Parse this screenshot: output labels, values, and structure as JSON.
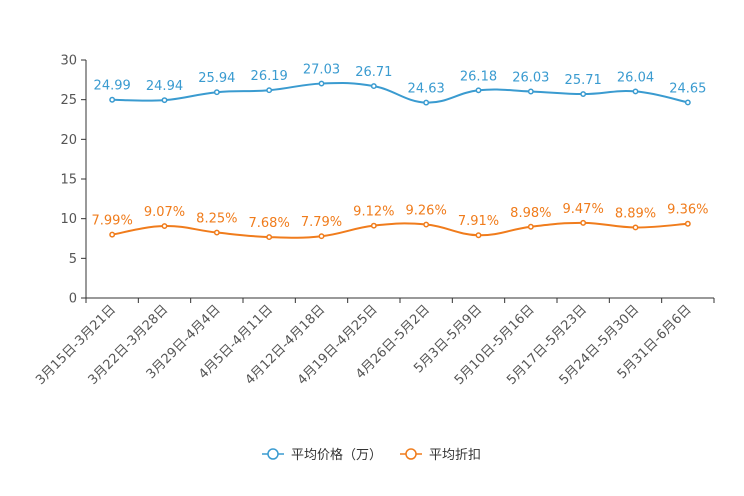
{
  "chart_data": {
    "type": "line",
    "title": "",
    "xlabel": "",
    "ylabel": "",
    "ylim": [
      0,
      30
    ],
    "yticks": [
      0,
      5,
      10,
      15,
      20,
      25,
      30
    ],
    "grid": false,
    "legend_position": "bottom-center",
    "categories": [
      "3月15日-3月21日",
      "3月22日-3月28日",
      "3月29日-4月4日",
      "4月5日-4月11日",
      "4月12日-4月18日",
      "4月19日-4月25日",
      "4月26日-5月2日",
      "5月3日-5月9日",
      "5月10日-5月16日",
      "5月17日-5月23日",
      "5月24日-5月30日",
      "5月31日-6月6日"
    ],
    "series": [
      {
        "name": "平均价格（万）",
        "color": "#3a9bd0",
        "values": [
          24.99,
          24.94,
          25.94,
          26.19,
          27.03,
          26.71,
          24.63,
          26.18,
          26.03,
          25.71,
          26.04,
          24.65
        ],
        "labels": [
          "24.99",
          "24.94",
          "25.94",
          "26.19",
          "27.03",
          "26.71",
          "24.63",
          "26.18",
          "26.03",
          "25.71",
          "26.04",
          "24.65"
        ]
      },
      {
        "name": "平均折扣",
        "color": "#f07c1c",
        "values": [
          7.99,
          9.07,
          8.25,
          7.68,
          7.79,
          9.12,
          9.26,
          7.91,
          8.98,
          9.47,
          8.89,
          9.36
        ],
        "labels": [
          "7.99%",
          "9.07%",
          "8.25%",
          "7.68%",
          "7.79%",
          "9.12%",
          "9.26%",
          "7.91%",
          "8.98%",
          "9.47%",
          "8.89%",
          "9.36%"
        ]
      }
    ]
  }
}
